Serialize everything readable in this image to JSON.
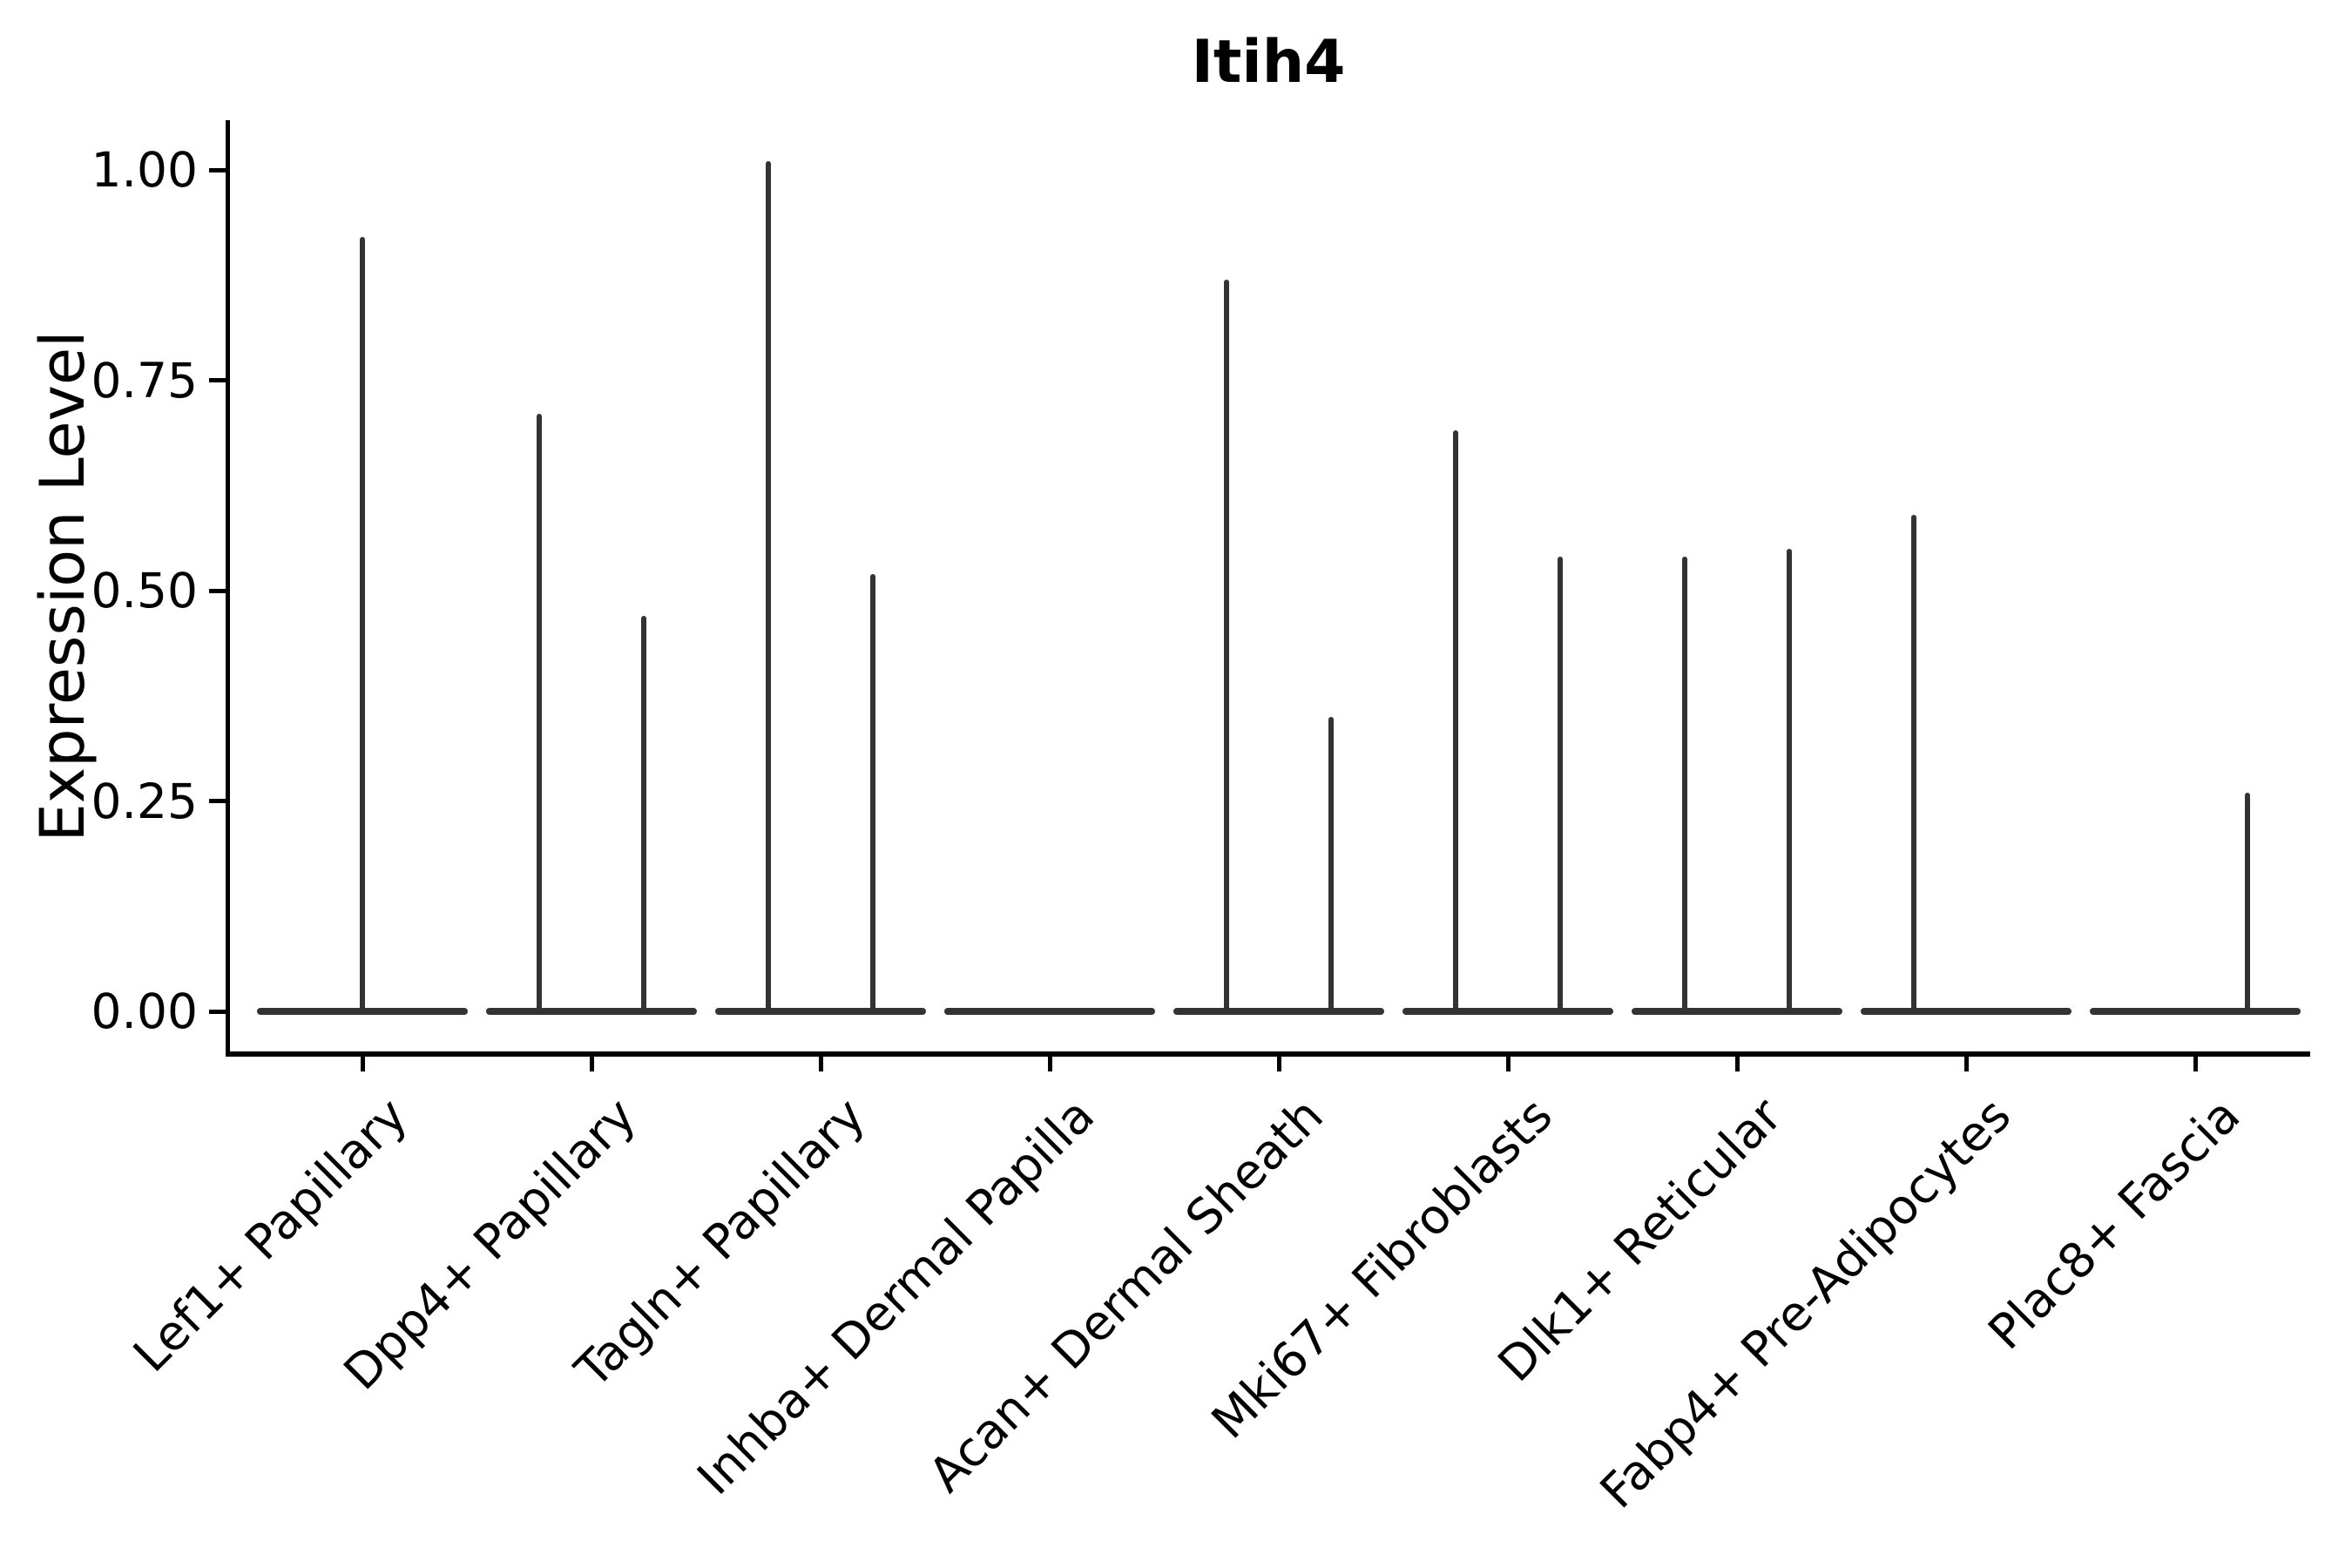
{
  "colors": {
    "violin_stroke": "#333333",
    "axis": "#000000",
    "text": "#000000",
    "background": "#ffffff"
  },
  "chart_data": {
    "type": "violin",
    "title": "Itih4",
    "ylabel": "Expression Level",
    "xlabel": "",
    "ylim": [
      0,
      1.06
    ],
    "grid": false,
    "legend": "none",
    "y_ticks": {
      "values": [
        0.0,
        0.25,
        0.5,
        0.75,
        1.0
      ],
      "labels": [
        "0.00",
        "0.25",
        "0.50",
        "0.75",
        "1.00"
      ]
    },
    "categories": [
      "Lef1+ Papillary",
      "Dpp4+ Papillary",
      "Tagln+ Papillary",
      "Inhba+ Dermal Papilla",
      "Acan+ Dermal Sheath",
      "Mki67+ Fibroblasts",
      "Dlk1+ Reticular",
      "Fabp4+ Pre-Adipocytes",
      "Plac8+ Fascia"
    ],
    "baseline_value": 0,
    "note": "Violins collapse to needle-thin spikes: nearly all cells at expression 0, spikes mark the max expression per violin; dodged pairs = two groups per category",
    "violins": [
      {
        "category": "Lef1+ Papillary",
        "spikes": [
          {
            "position": "center",
            "max": 0.92
          }
        ]
      },
      {
        "category": "Dpp4+ Papillary",
        "spikes": [
          {
            "position": "left",
            "max": 0.71
          },
          {
            "position": "right",
            "max": 0.47
          }
        ]
      },
      {
        "category": "Tagln+ Papillary",
        "spikes": [
          {
            "position": "left",
            "max": 1.01
          },
          {
            "position": "right",
            "max": 0.52
          }
        ]
      },
      {
        "category": "Inhba+ Dermal Papilla",
        "spikes": []
      },
      {
        "category": "Acan+ Dermal Sheath",
        "spikes": [
          {
            "position": "left",
            "max": 0.87
          },
          {
            "position": "right",
            "max": 0.35
          }
        ]
      },
      {
        "category": "Mki67+ Fibroblasts",
        "spikes": [
          {
            "position": "left",
            "max": 0.69
          },
          {
            "position": "right",
            "max": 0.54
          }
        ]
      },
      {
        "category": "Dlk1+ Reticular",
        "spikes": [
          {
            "position": "left",
            "max": 0.54
          },
          {
            "position": "right",
            "max": 0.55
          }
        ]
      },
      {
        "category": "Fabp4+ Pre-Adipocytes",
        "spikes": [
          {
            "position": "left",
            "max": 0.59
          }
        ]
      },
      {
        "category": "Plac8+ Fascia",
        "spikes": [
          {
            "position": "right",
            "max": 0.26
          }
        ]
      }
    ]
  }
}
